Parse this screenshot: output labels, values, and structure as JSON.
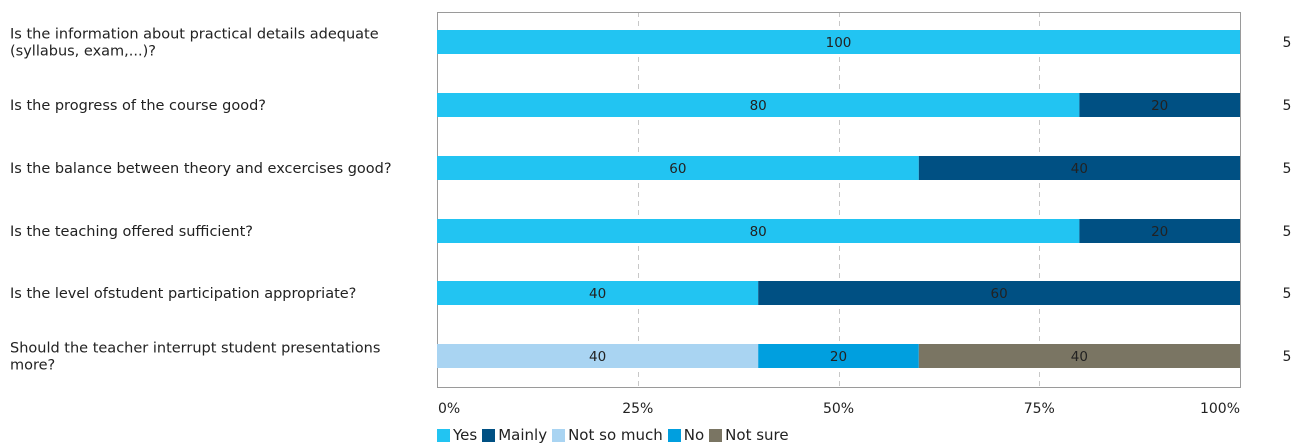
{
  "chart_data": {
    "type": "bar",
    "orientation": "horizontal",
    "stacked": true,
    "categories": [
      "Is the information about practical details adequate (syllabus, exam,...)?",
      "Is the progress of the course good?",
      "Is the balance between theory and excercises good?",
      "Is the teaching offered sufficient?",
      "Is the level ofstudent participation appropriate?",
      "Should the teacher interrupt student presentations more?"
    ],
    "category_lines": [
      [
        "Is the information about practical details adequate",
        "(syllabus, exam,...)?"
      ],
      [
        "Is the progress of the course good?"
      ],
      [
        "Is the balance between theory and excercises good?"
      ],
      [
        "Is the teaching offered sufficient?"
      ],
      [
        "Is the level ofstudent participation appropriate?"
      ],
      [
        "Should the teacher interrupt student presentations",
        "more?"
      ]
    ],
    "series": [
      {
        "name": "Yes",
        "color": "#22C4F2",
        "values": [
          100,
          80,
          60,
          80,
          40,
          0
        ]
      },
      {
        "name": "Mainly",
        "color": "#005083",
        "values": [
          0,
          20,
          40,
          20,
          60,
          0
        ]
      },
      {
        "name": "Not so much",
        "color": "#A9D4F2",
        "values": [
          0,
          0,
          0,
          0,
          0,
          40
        ]
      },
      {
        "name": "No",
        "color": "#009FDF",
        "values": [
          0,
          0,
          0,
          0,
          0,
          20
        ]
      },
      {
        "name": "Not sure",
        "color": "#7A7563",
        "values": [
          0,
          0,
          0,
          0,
          0,
          40
        ]
      }
    ],
    "counts": [
      "5",
      "5",
      "5",
      "5",
      "5",
      "5"
    ],
    "xticks": [
      "0%",
      "25%",
      "50%",
      "75%",
      "100%"
    ],
    "xlim": [
      0,
      100
    ],
    "grid": "vertical dashed",
    "legend_position": "bottom",
    "title": "",
    "xlabel": "",
    "ylabel": ""
  }
}
